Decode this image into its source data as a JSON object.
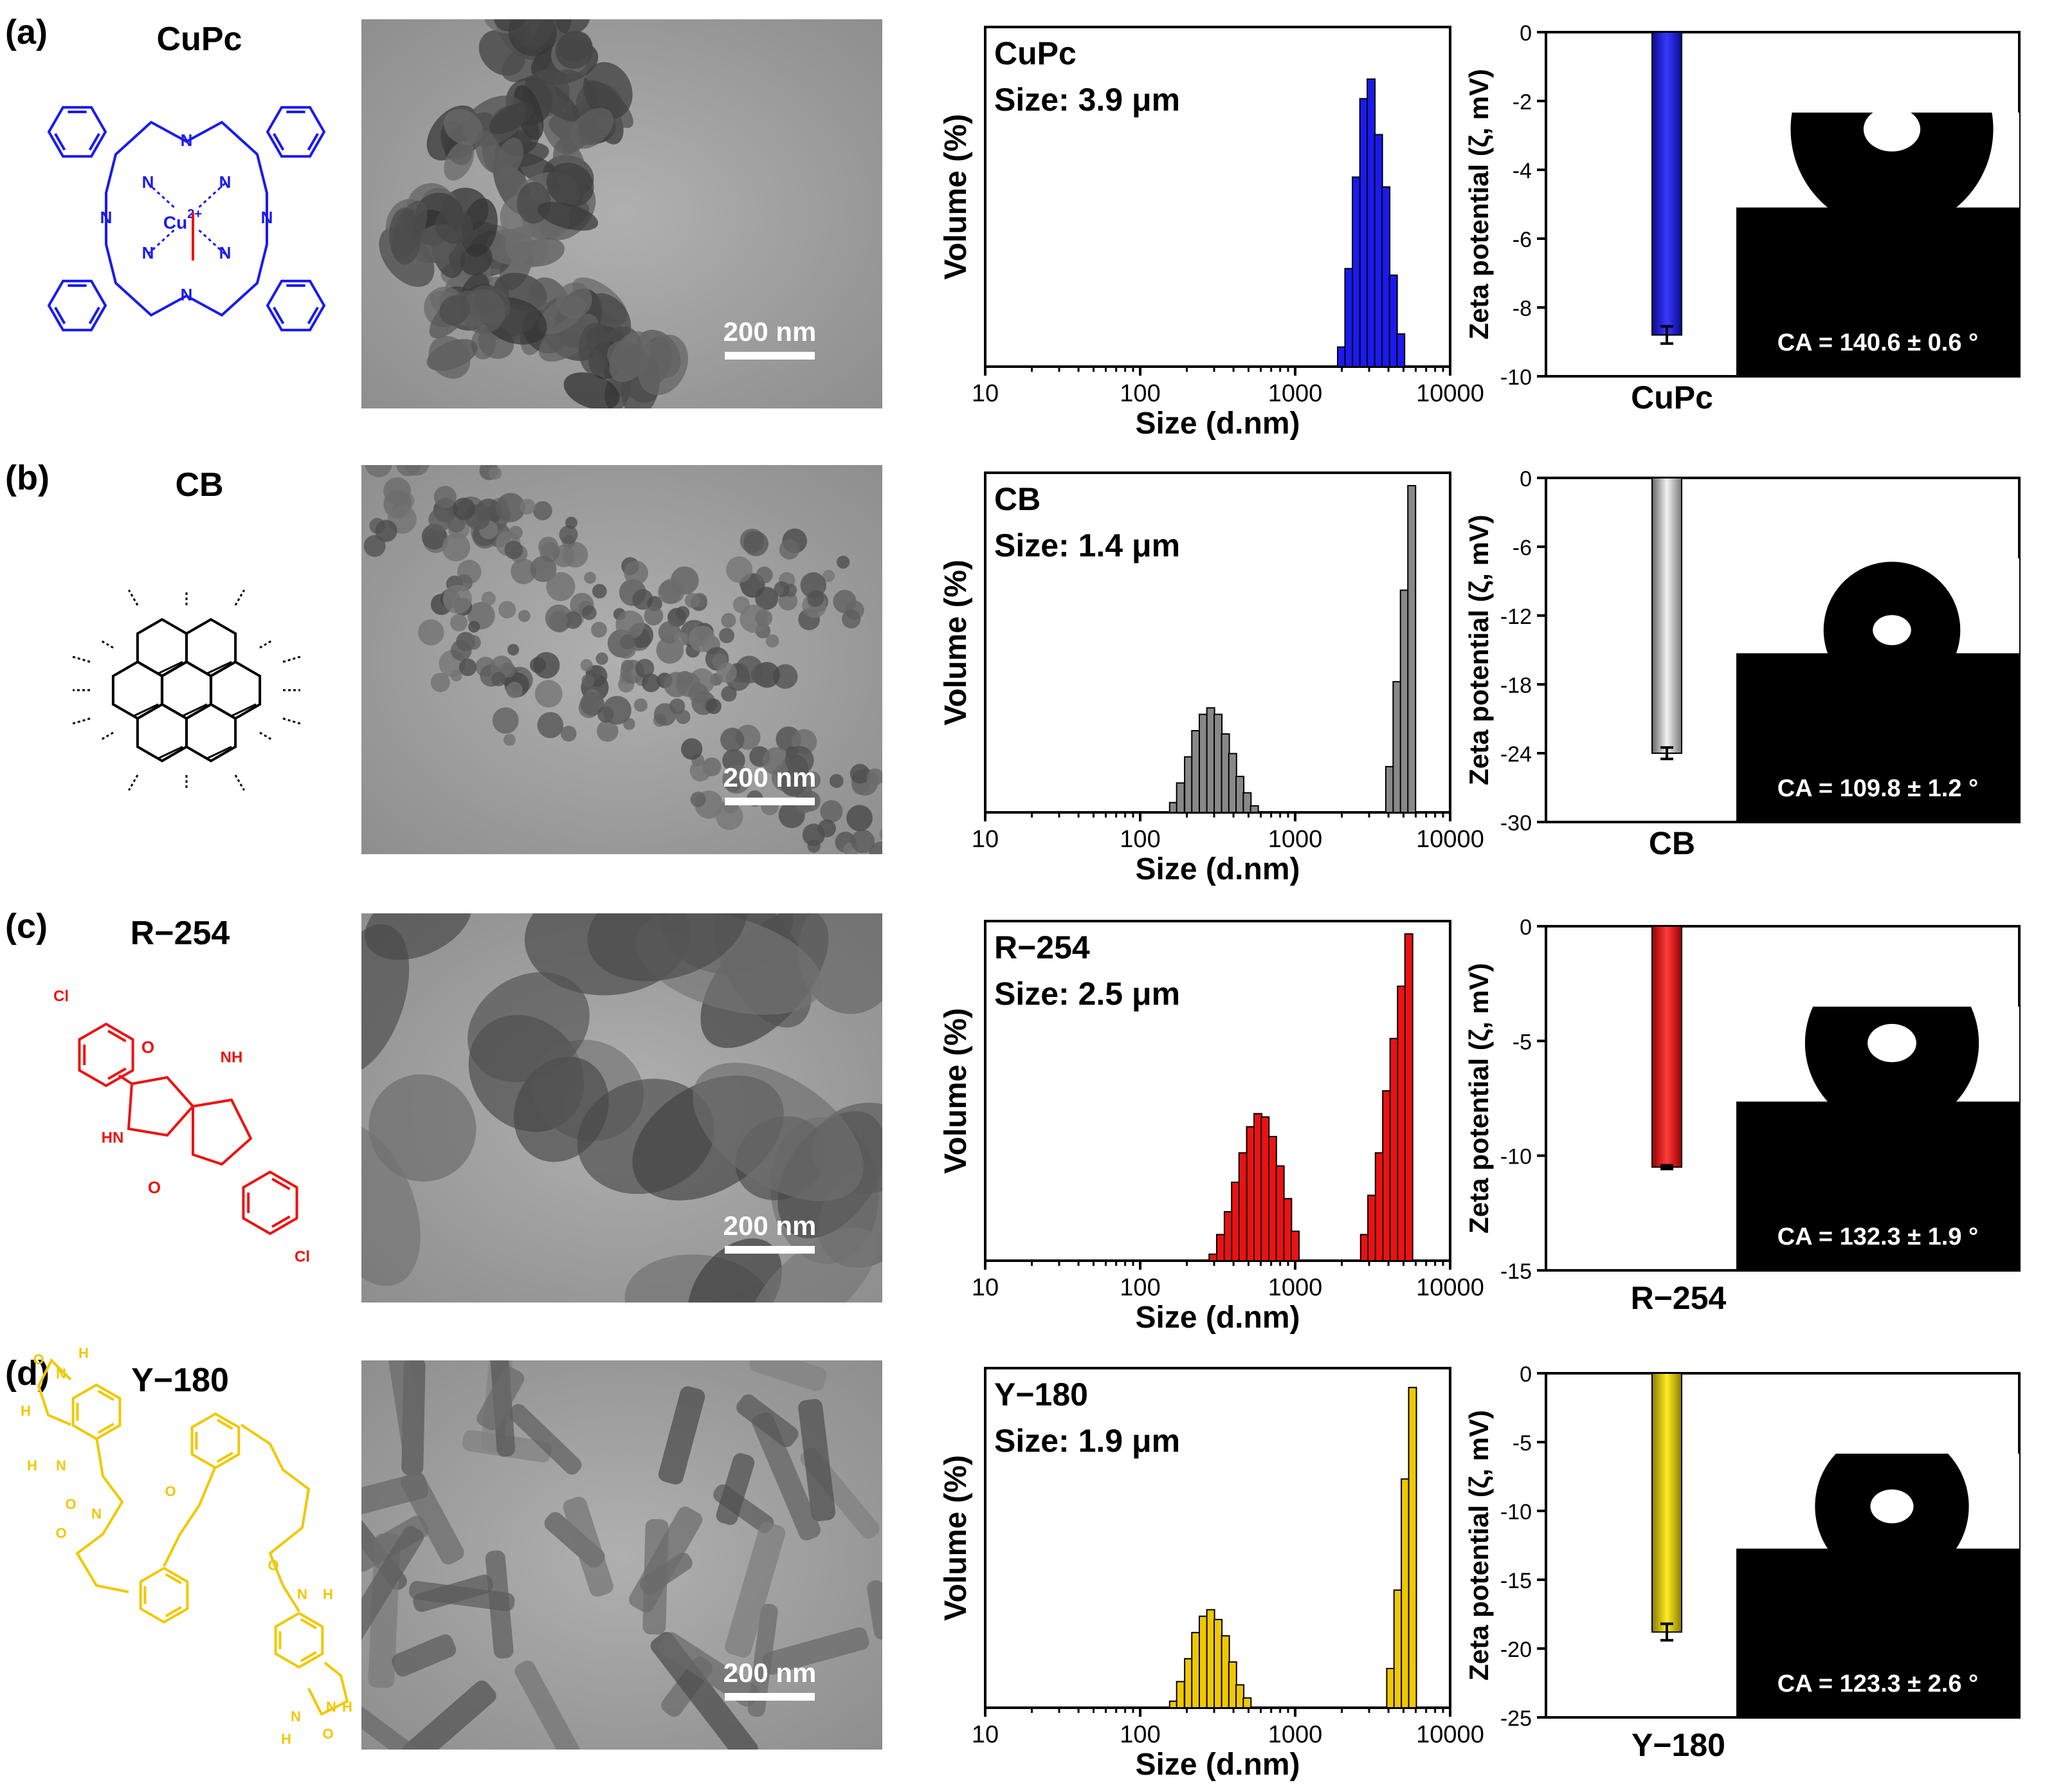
{
  "panels": [
    {
      "id": "a",
      "letter": "(a)",
      "name": "CuPc",
      "color": "#1a1af0",
      "structure": "phthalocyanine",
      "metal_label": "Cu2+",
      "tem": {
        "scale_label": "200 nm",
        "style": "agglomerate"
      },
      "dls": {
        "type": "bar",
        "label": "CuPc",
        "size_label": "Size: 3.9 μm",
        "xlabel": "Size (d.nm)",
        "ylabel": "Volume (%)",
        "xscale": "log",
        "xlim": [
          10,
          10000
        ],
        "xticks": [
          "10",
          "100",
          "1000",
          "10000"
        ],
        "x": [
          1990,
          2220,
          2480,
          2770,
          3090,
          3450,
          3850,
          4300,
          4800
        ],
        "values": [
          6,
          30,
          58,
          82,
          88,
          71,
          55,
          28,
          10
        ],
        "ylim": [
          0,
          100
        ]
      },
      "zeta": {
        "type": "bar",
        "bar_label": "CuPc",
        "ylabel": "Zeta potential (ζ,  mV)",
        "ylim": [
          -10,
          0
        ],
        "yticks": [
          "0",
          "-2",
          "-4",
          "-6",
          "-8",
          "-10"
        ],
        "value": -8.8,
        "error": 0.25,
        "ca_label": "CA = 140.6 ± 0.6 °",
        "contact_angle": 140.6
      }
    },
    {
      "id": "b",
      "letter": "(b)",
      "name": "CB",
      "color": "#888888",
      "structure": "graphene",
      "metal_label": "",
      "tem": {
        "scale_label": "200 nm",
        "style": "small-cluster"
      },
      "dls": {
        "type": "bar",
        "label": "CB",
        "size_label": "Size: 1.4 μm",
        "xlabel": "Size (d.nm)",
        "ylabel": "Volume (%)",
        "xscale": "log",
        "xlim": [
          10,
          10000
        ],
        "xticks": [
          "10",
          "100",
          "1000",
          "10000"
        ],
        "x": [
          164,
          182,
          205,
          228,
          255,
          285,
          318,
          355,
          395,
          440,
          490,
          546,
          4070,
          4540,
          5060,
          5650
        ],
        "values": [
          3,
          9,
          17,
          25,
          30,
          32,
          30,
          24,
          18,
          11,
          6,
          2,
          14,
          40,
          68,
          100
        ],
        "ylim": [
          0,
          100
        ]
      },
      "zeta": {
        "type": "bar",
        "bar_label": "CB",
        "ylabel": "Zeta potential (ζ,  mV)",
        "ylim": [
          -30,
          0
        ],
        "yticks": [
          "0",
          "-6",
          "-12",
          "-18",
          "-24",
          "-30"
        ],
        "value": -24,
        "error": 0.5,
        "ca_label": "CA = 109.8 ± 1.2 °",
        "contact_angle": 109.8
      }
    },
    {
      "id": "c",
      "letter": "(c)",
      "name": "R−254",
      "color": "#ee1111",
      "structure": "dpp",
      "metal_label": "",
      "labels": {
        "cl_top": "Cl",
        "cl_bottom": "Cl",
        "nh_right": "NH",
        "hn_left": "HN",
        "o_top": "O",
        "o_bottom": "O"
      },
      "tem": {
        "scale_label": "200 nm",
        "style": "large-particle"
      },
      "dls": {
        "type": "bar",
        "label": "R−254",
        "size_label": "Size: 2.5 μm",
        "xlabel": "Size (d.nm)",
        "ylabel": "Volume (%)",
        "xscale": "log",
        "xlim": [
          10,
          10000
        ],
        "xticks": [
          "10",
          "100",
          "1000",
          "10000"
        ],
        "x": [
          295,
          330,
          370,
          412,
          460,
          515,
          575,
          640,
          715,
          800,
          895,
          1000,
          2800,
          3120,
          3490,
          3890,
          4340,
          4850,
          5410
        ],
        "values": [
          2,
          8,
          15,
          24,
          33,
          41,
          45,
          44,
          38,
          29,
          19,
          9,
          8,
          20,
          33,
          52,
          68,
          84,
          100
        ],
        "ylim": [
          0,
          100
        ]
      },
      "zeta": {
        "type": "bar",
        "bar_label": "R−254",
        "ylabel": "Zeta potential (ζ,  mV)",
        "ylim": [
          -15,
          0
        ],
        "yticks": [
          "0",
          "-5",
          "-10",
          "-15"
        ],
        "value": -10.5,
        "error": 0.08,
        "ca_label": "CA = 132.3 ± 1.9 °",
        "contact_angle": 132.3
      }
    },
    {
      "id": "d",
      "letter": "(d)",
      "name": "Y−180",
      "color": "#f0c800",
      "structure": "y180",
      "metal_label": "",
      "labels": {
        "o1": "O",
        "h1": "H",
        "n1": "N",
        "h2": "H",
        "h3": "H",
        "n3": "N",
        "o2": "O",
        "n4": "N",
        "o4": "O",
        "o5": "O",
        "h5": "H",
        "n5": "N",
        "o6": "O",
        "h6": "H",
        "n6": "N",
        "n7": "N",
        "h7": "H",
        "o7": "O"
      },
      "tem": {
        "scale_label": "200 nm",
        "style": "rod"
      },
      "dls": {
        "type": "bar",
        "label": "Y−180",
        "size_label": "Size: 1.9 μm",
        "xlabel": "Size (d.nm)",
        "ylabel": "Volume (%)",
        "xscale": "log",
        "xlim": [
          10,
          10000
        ],
        "xticks": [
          "10",
          "100",
          "1000",
          "10000"
        ],
        "x": [
          164,
          182,
          205,
          228,
          255,
          285,
          318,
          355,
          395,
          440,
          490,
          4130,
          4600,
          5130,
          5720
        ],
        "values": [
          2,
          8,
          15,
          23,
          28,
          30,
          27,
          22,
          14,
          7,
          3,
          12,
          36,
          70,
          98
        ],
        "ylim": [
          0,
          100
        ]
      },
      "zeta": {
        "type": "bar",
        "bar_label": "Y−180",
        "ylabel": "Zeta potential (ζ,  mV)",
        "ylim": [
          -25,
          0
        ],
        "yticks": [
          "0",
          "-5",
          "-10",
          "-15",
          "-20",
          "-25"
        ],
        "value": -18.8,
        "error": 0.6,
        "ca_label": "CA = 123.3 ± 2.6 °",
        "contact_angle": 123.3
      }
    }
  ]
}
